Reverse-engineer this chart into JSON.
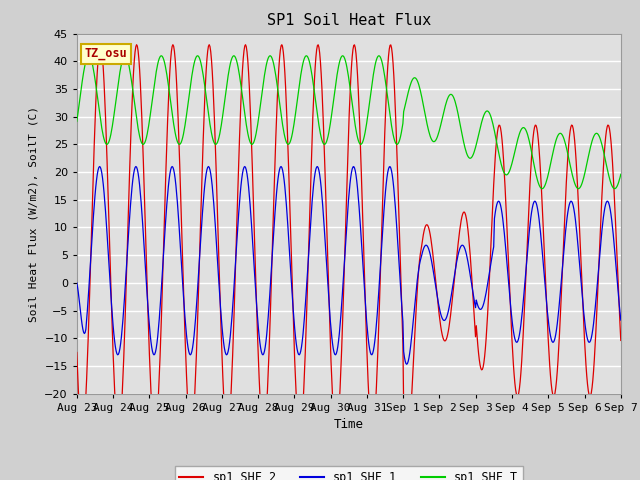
{
  "title": "SP1 Soil Heat Flux",
  "xlabel": "Time",
  "ylabel": "Soil Heat Flux (W/m2), SoilT (C)",
  "ylim": [
    -20,
    45
  ],
  "xlim": [
    0,
    15
  ],
  "fig_facecolor": "#d0d0d0",
  "ax_facecolor": "#e0e0e0",
  "grid_color": "#ffffff",
  "line_colors": {
    "sp1_SHF_2": "#dd0000",
    "sp1_SHF_1": "#0000dd",
    "sp1_SHF_T": "#00cc00"
  },
  "tick_labels": [
    "Aug 23",
    "Aug 24",
    "Aug 25",
    "Aug 26",
    "Aug 27",
    "Aug 28",
    "Aug 29",
    "Aug 30",
    "Aug 31",
    "Sep 1",
    "Sep 2",
    "Sep 3",
    "Sep 4",
    "Sep 5",
    "Sep 6",
    "Sep 7"
  ],
  "yticks": [
    -20,
    -15,
    -10,
    -5,
    0,
    5,
    10,
    15,
    20,
    25,
    30,
    35,
    40,
    45
  ],
  "tz_label": "TZ_osu",
  "tz_color": "#aa0000",
  "tz_bg": "#ffffcc",
  "tz_border": "#ccaa00"
}
